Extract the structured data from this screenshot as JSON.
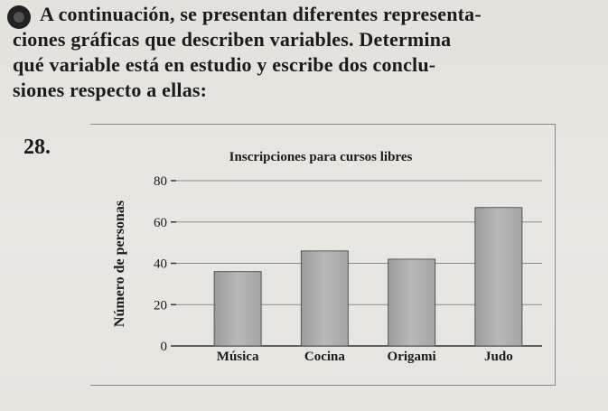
{
  "exercise": {
    "intro_lines": [
      "A continuación, se presentan diferentes representa-",
      "ciones gráficas que describen variables. Determina",
      "qué variable está en estudio y escribe dos conclu-",
      "siones respecto a ellas:"
    ],
    "number": "28."
  },
  "chart_data": {
    "type": "bar",
    "title": "Inscripciones para cursos libres",
    "xlabel": "",
    "ylabel": "Número de personas",
    "categories": [
      "Música",
      "Cocina",
      "Origami",
      "Judo"
    ],
    "values": [
      36,
      46,
      42,
      67
    ],
    "ylim": [
      0,
      80
    ],
    "yticks": [
      "0",
      "20",
      "40",
      "60",
      "80"
    ],
    "grid": true,
    "bar_color": "#b8b8b8"
  }
}
